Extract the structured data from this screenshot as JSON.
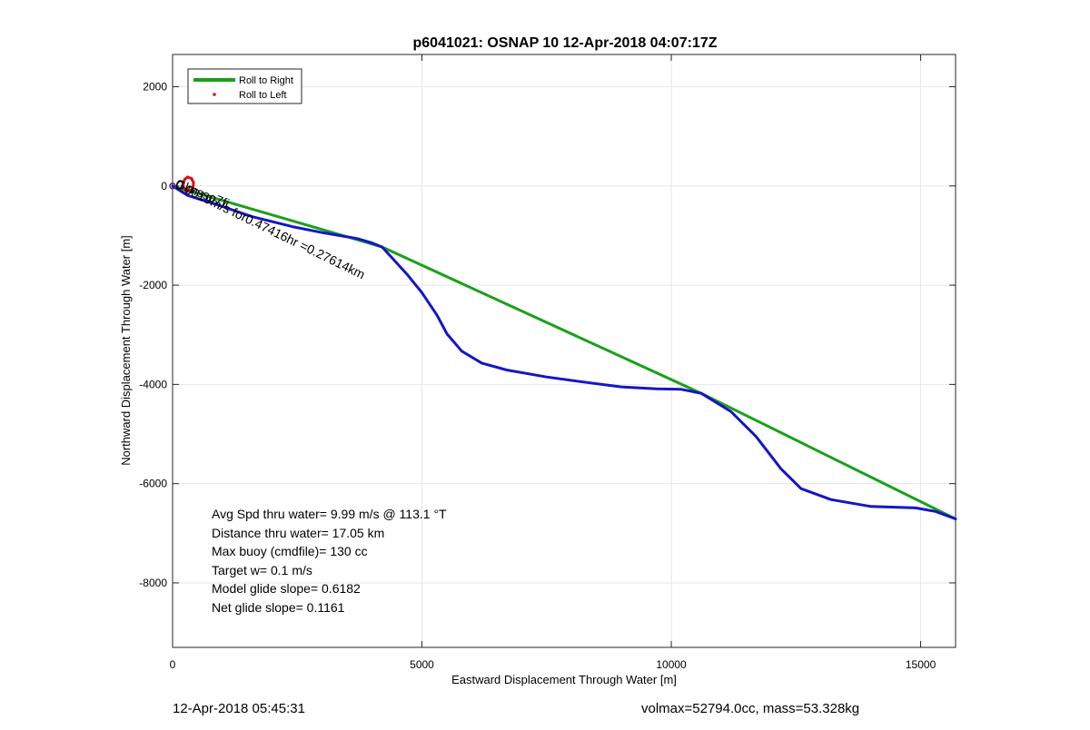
{
  "chart_data": {
    "type": "line",
    "title": "p6041021: OSNAP 10 12-Apr-2018 04:07:17Z",
    "xlabel": "Eastward Displacement Through Water [m]",
    "ylabel": "Northward Displacement Through Water [m]",
    "xlim": [
      0,
      15700
    ],
    "ylim": [
      -9300,
      2650
    ],
    "xticks": [
      0,
      5000,
      10000,
      15000
    ],
    "yticks": [
      2000,
      0,
      -2000,
      -4000,
      -6000,
      -8000
    ],
    "xtick_labels": [
      "0",
      "5000",
      "10000",
      "15000"
    ],
    "ytick_labels": [
      "2000",
      "0",
      "-2000",
      "-4000",
      "-6000",
      "-8000"
    ],
    "grid": true,
    "legend": {
      "placement": "top-left",
      "entries": [
        {
          "label": "Roll to Right",
          "color": "#1aa01a",
          "marker": "line"
        },
        {
          "label": "Roll to Left",
          "color": "#dd1111",
          "marker": "dot"
        }
      ]
    },
    "series": [
      {
        "name": "Roll to Right",
        "color": "#1aa01a",
        "x": [
          0,
          4200,
          10600,
          15700
        ],
        "y": [
          0,
          -1230,
          -4180,
          -6710
        ]
      },
      {
        "color": "#1515c8",
        "x": [
          0,
          300,
          900,
          1600,
          2400,
          3000,
          3700,
          4000,
          4200,
          4400,
          4700,
          5000,
          5300,
          5500,
          5800,
          6200,
          6700,
          7500,
          8300,
          9000,
          9700,
          10200,
          10600,
          11200,
          11700,
          12200,
          12600,
          13200,
          14000,
          14900,
          15300,
          15700
        ],
        "y": [
          0,
          -190,
          -380,
          -620,
          -820,
          -940,
          -1060,
          -1150,
          -1230,
          -1450,
          -1780,
          -2150,
          -2600,
          -2980,
          -3330,
          -3570,
          -3710,
          -3850,
          -3960,
          -4050,
          -4090,
          -4100,
          -4180,
          -4550,
          -5050,
          -5700,
          -6100,
          -6320,
          -6460,
          -6490,
          -6560,
          -6710
        ]
      }
    ],
    "roll_left_points": {
      "color": "#dd1111",
      "x": [
        300,
        380,
        420,
        410,
        340,
        270,
        220,
        210,
        250,
        300
      ],
      "y": [
        180,
        150,
        60,
        -40,
        -110,
        -100,
        -30,
        60,
        140,
        180
      ]
    },
    "annotation": {
      "text": "0.0019m/s for0.47416hr =0.27614km",
      "overlap_text": "Glmsso7fi",
      "x": 0,
      "y": 0,
      "rotation_deg": 26
    },
    "stats_lines": [
      "Avg Spd thru water=  9.99 m/s @ 113.1 °T",
      "Distance thru water= 17.05 km",
      "Max buoy (cmdfile)= 130 cc",
      "Target w= 0.1 m/s",
      "Model glide slope= 0.6182",
      "Net glide slope= 0.1161"
    ]
  },
  "footer": {
    "left": "12-Apr-2018 05:45:31",
    "right": "volmax=52794.0cc, mass=53.328kg"
  }
}
